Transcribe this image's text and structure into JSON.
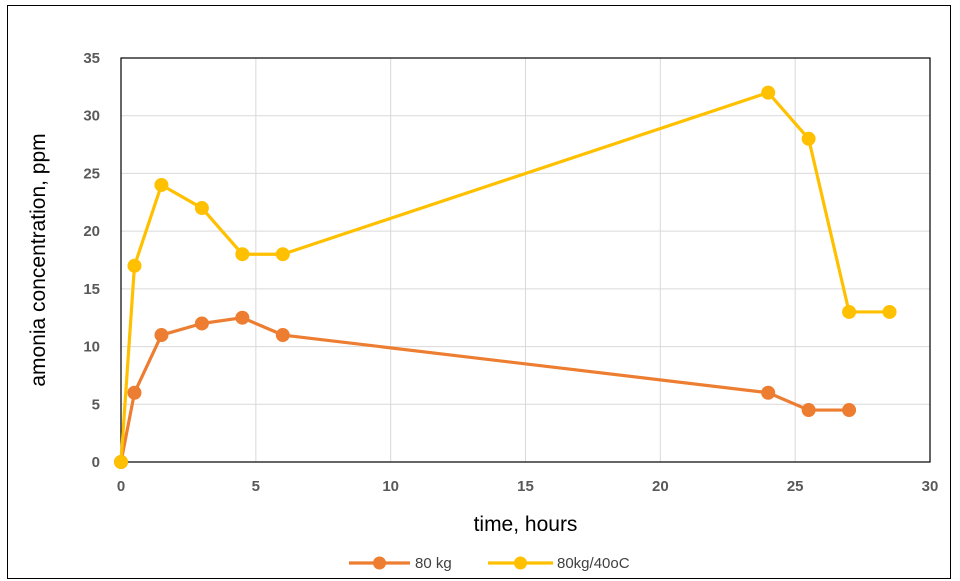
{
  "chart_data": {
    "type": "line",
    "title": "",
    "xlabel": "time, hours",
    "ylabel": "amonia concentration, ppm",
    "xlim": [
      0,
      30
    ],
    "ylim": [
      0,
      35
    ],
    "xticks": [
      0,
      5,
      10,
      15,
      20,
      25,
      30
    ],
    "yticks": [
      0,
      5,
      10,
      15,
      20,
      25,
      30,
      35
    ],
    "grid": true,
    "legend_position": "bottom",
    "series": [
      {
        "name": "80 kg",
        "color": "#ED7D31",
        "points": [
          [
            0,
            0
          ],
          [
            0.5,
            6
          ],
          [
            1.5,
            11
          ],
          [
            3,
            12
          ],
          [
            4.5,
            12.5
          ],
          [
            6,
            11
          ],
          [
            24,
            6
          ],
          [
            25.5,
            4.5
          ],
          [
            27,
            4.5
          ]
        ]
      },
      {
        "name": "80kg/40oC",
        "color": "#FFC000",
        "points": [
          [
            0,
            0
          ],
          [
            0.5,
            17
          ],
          [
            1.5,
            24
          ],
          [
            3,
            22
          ],
          [
            4.5,
            18
          ],
          [
            6,
            18
          ],
          [
            24,
            32
          ],
          [
            25.5,
            28
          ],
          [
            27,
            13
          ],
          [
            28.5,
            13
          ]
        ]
      }
    ]
  }
}
